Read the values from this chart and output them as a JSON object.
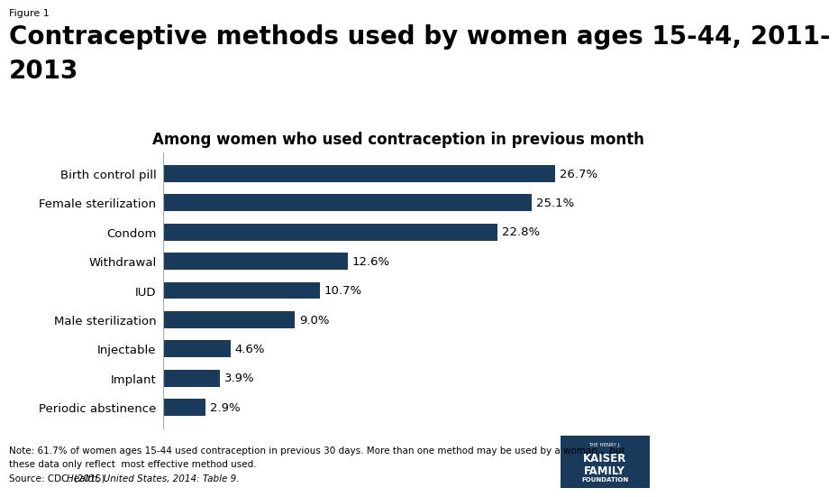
{
  "figure_label": "Figure 1",
  "title_line1": "Contraceptive methods used by women ages 15-44, 2011-",
  "title_line2": "2013",
  "subtitle": "Among women who used contraception in previous month",
  "categories": [
    "Periodic abstinence",
    "Implant",
    "Injectable",
    "Male sterilization",
    "IUD",
    "Withdrawal",
    "Condom",
    "Female sterilization",
    "Birth control pill"
  ],
  "values": [
    2.9,
    3.9,
    4.6,
    9.0,
    10.7,
    12.6,
    22.8,
    25.1,
    26.7
  ],
  "labels": [
    "2.9%",
    "3.9%",
    "4.6%",
    "9.0%",
    "10.7%",
    "12.6%",
    "22.8%",
    "25.1%",
    "26.7%"
  ],
  "bar_color": "#1a3a5c",
  "background_color": "#ffffff",
  "note_line1": "Note: 61.7% of women ages 15-44 used contraception in previous 30 days. More than one method may be used by a woman.,  but",
  "note_line2": "these data only reflect  most effective method used.",
  "source_plain": "Source: CDC. (2015). ",
  "source_italic": "Health, United States, 2014: Table 9.",
  "xlim": [
    0,
    32
  ],
  "title_fontsize": 20,
  "subtitle_fontsize": 12,
  "label_fontsize": 9.5,
  "bar_label_fontsize": 9.5,
  "note_fontsize": 7.5,
  "figure_label_fontsize": 8,
  "logo_title": "THE HENRY J.",
  "logo_line1": "KAISER",
  "logo_line2": "FAMILY",
  "logo_line3": "FOUNDATION",
  "logo_color": "#1a3a5c"
}
